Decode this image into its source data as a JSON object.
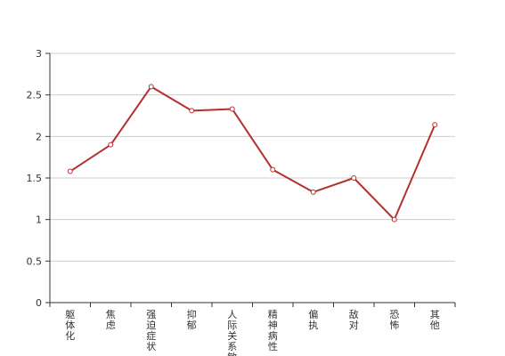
{
  "colors": {
    "series": "#b3302e",
    "grid": "#cccccc",
    "axis": "#333333",
    "text": "#333333",
    "marker_fill": "#ffffff"
  },
  "chart_data": {
    "type": "line",
    "title": "",
    "xlabel": "",
    "ylabel": "",
    "categories": [
      "躯体化",
      "焦虑",
      "强迫症状",
      "抑郁",
      "人际关系敏感",
      "精神病性",
      "偏执",
      "敌对",
      "恐怖",
      "其他"
    ],
    "values": [
      1.58,
      1.9,
      2.6,
      2.31,
      2.33,
      1.6,
      1.33,
      1.5,
      1.0,
      2.14
    ],
    "ylim": [
      0,
      3
    ],
    "yticks": [
      0,
      0.5,
      1,
      1.5,
      2,
      2.5,
      3
    ],
    "ytick_labels": [
      "0",
      "0.5",
      "1",
      "1.5",
      "2",
      "2.5",
      "3"
    ],
    "grid": true,
    "legend": "none",
    "markers": "hollow-circle"
  }
}
